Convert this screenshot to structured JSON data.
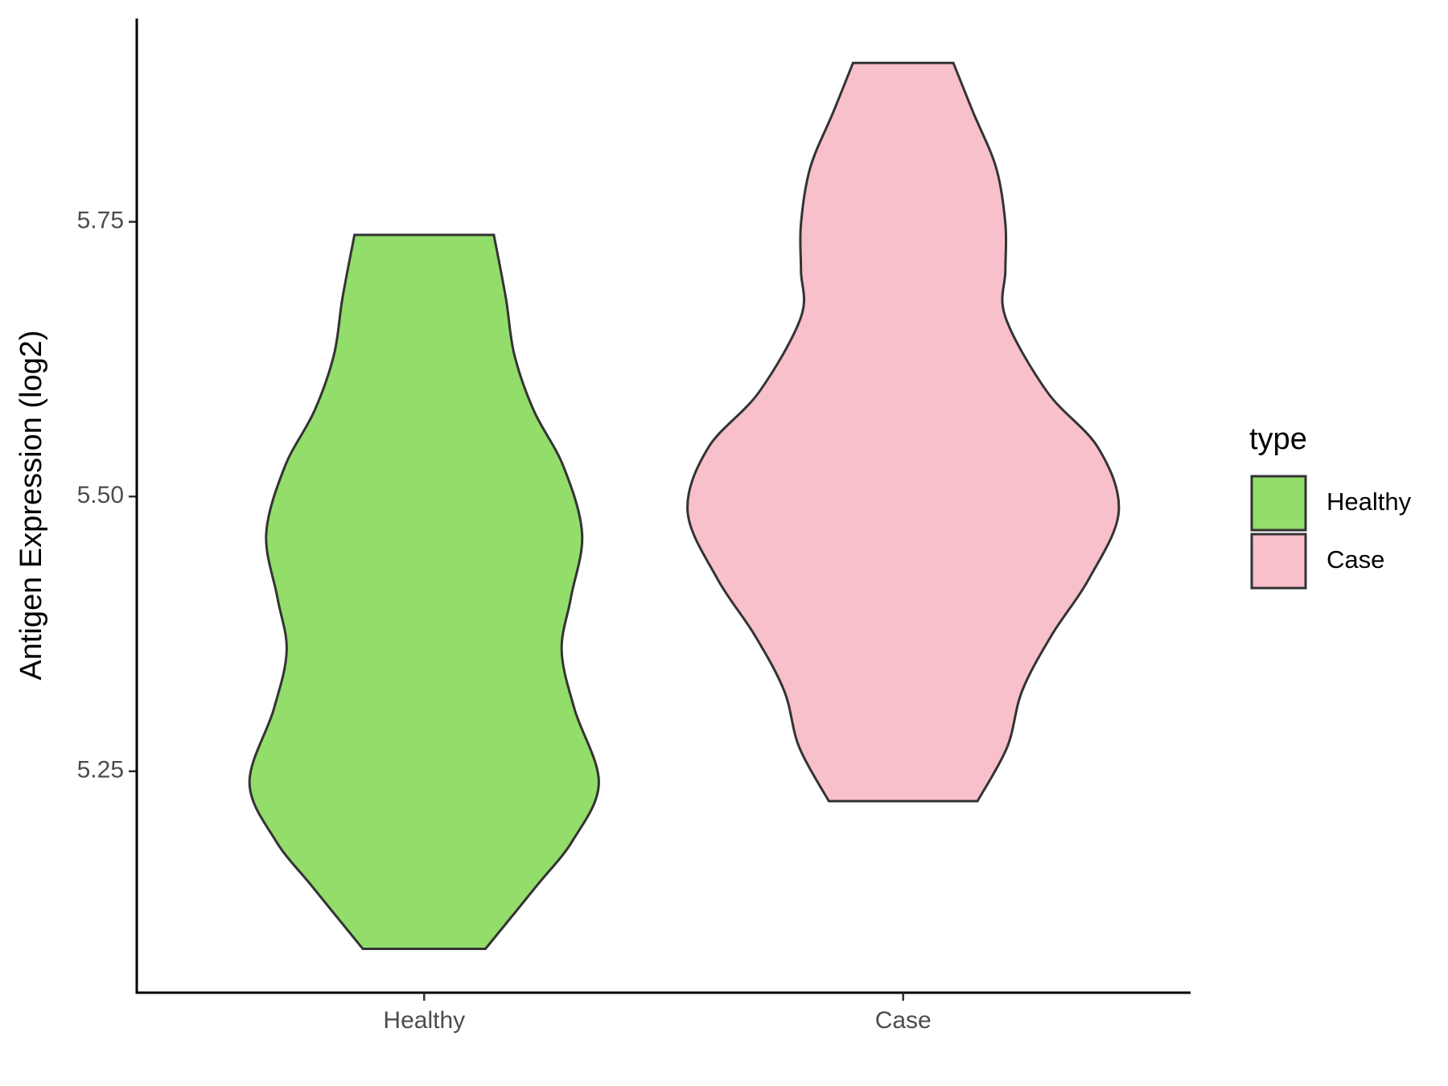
{
  "chart_data": {
    "type": "violin",
    "y_label": "Antigen Expression (log2)",
    "categories": [
      "Healthy",
      "Case"
    ],
    "legend_title": "type",
    "legend_position": "right",
    "ylim": [
      5.0485,
      5.935
    ],
    "yticks": [
      {
        "value": 5.25,
        "label": "5.25"
      },
      {
        "value": 5.5,
        "label": "5.50"
      },
      {
        "value": 5.75,
        "label": "5.75"
      }
    ],
    "series": [
      {
        "name": "Healthy",
        "color": "#93dd6a",
        "values": [
          5.0884,
          5.1446,
          5.1871,
          5.2398,
          5.3061,
          5.3597,
          5.4082,
          5.466,
          5.5272,
          5.5782,
          5.6293,
          5.6803,
          5.7381
        ],
        "density": [
          66,
          120,
          160,
          188,
          162,
          148,
          158,
          170,
          150,
          118,
          97,
          88,
          75
        ]
      },
      {
        "name": "Case",
        "color": "#f7c0cb",
        "values": [
          5.2228,
          5.2721,
          5.3231,
          5.3741,
          5.4252,
          5.4864,
          5.5442,
          5.5952,
          5.6633,
          5.7058,
          5.7483,
          5.7993,
          5.8503,
          5.8946
        ],
        "density": [
          80,
          112,
          128,
          160,
          200,
          232,
          210,
          155,
          110,
          110,
          110,
          100,
          75,
          54
        ]
      }
    ]
  }
}
